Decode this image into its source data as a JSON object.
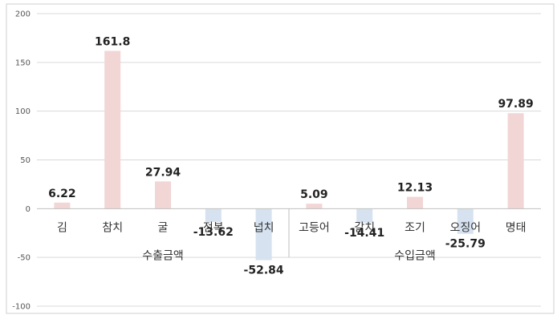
{
  "chart_data": {
    "type": "bar",
    "title": "",
    "xlabel": "",
    "ylabel": "",
    "ylim": [
      -100,
      200
    ],
    "yticks": [
      200,
      150,
      100,
      50,
      0,
      -50,
      -100
    ],
    "grid": true,
    "legend": "none",
    "colors": {
      "positive": "#f2d6d5",
      "negative": "#d6e2f0",
      "grid": "#d9d9d9",
      "axis": "#bfbfbf",
      "frame": "#cfcfcf"
    },
    "groups": [
      {
        "label": "수출금액",
        "categories": [
          "김",
          "참치",
          "굴",
          "전복",
          "넙치"
        ],
        "values": [
          6.22,
          161.8,
          27.94,
          -13.62,
          -52.84
        ]
      },
      {
        "label": "수입금액",
        "categories": [
          "고등어",
          "갈치",
          "조기",
          "오징어",
          "명태"
        ],
        "values": [
          5.09,
          -14.41,
          12.13,
          -25.79,
          97.89
        ]
      }
    ],
    "value_labels": [
      "6.22",
      "161.8",
      "27.94",
      "-13.62",
      "-52.84",
      "5.09",
      "-14.41",
      "12.13",
      "-25.79",
      "97.89"
    ]
  }
}
